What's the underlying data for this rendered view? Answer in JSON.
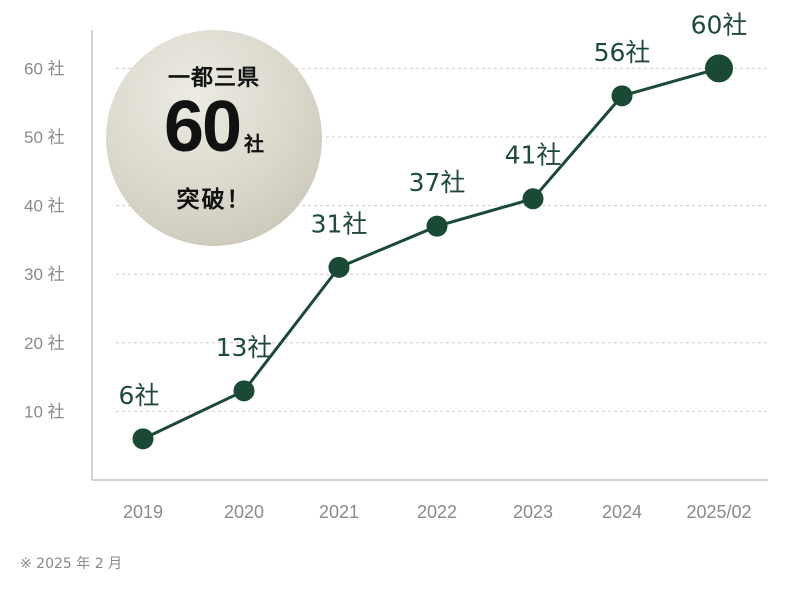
{
  "chart_data": {
    "type": "line",
    "categories": [
      "2019",
      "2020",
      "2021",
      "2022",
      "2023",
      "2024",
      "2025/02"
    ],
    "values": [
      6,
      13,
      31,
      37,
      41,
      56,
      60
    ],
    "data_labels": [
      "6社",
      "13社",
      "31社",
      "37社",
      "41社",
      "56社",
      "60社"
    ],
    "y_ticks": [
      10,
      20,
      30,
      40,
      50,
      60
    ],
    "y_tick_labels": [
      "10 社",
      "20 社",
      "30 社",
      "40 社",
      "50 社",
      "60 社"
    ],
    "ylim": [
      0,
      65
    ],
    "grid": "horizontal dashed",
    "colors": {
      "line": "#1a4a35",
      "marker": "#1a4a35",
      "label": "#1f4a37",
      "grid": "#cccccc",
      "axis": "#bbbbbb"
    }
  },
  "badge": {
    "line1": "一都三県",
    "number": "60",
    "unit": "社",
    "line3": "突破！"
  },
  "footnote": "※ 2025 年 2 月"
}
